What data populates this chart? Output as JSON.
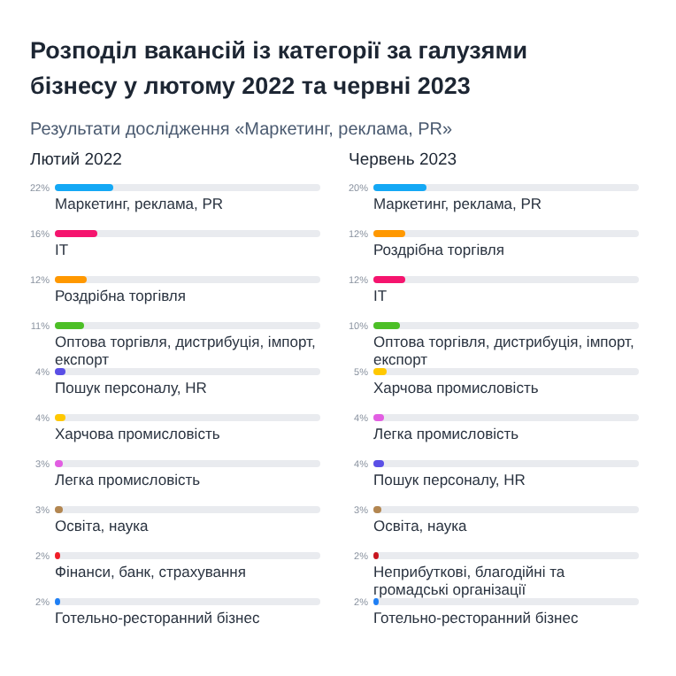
{
  "chart_data": [
    {
      "type": "bar",
      "orientation": "horizontal",
      "title": "Лютий 2022",
      "annotations": [
        "Розподіл вакансій із категорії за галузями бізнесу у лютому 2022 та червні 2023",
        "Результати дослідження «Маркетинг, реклама, PR»"
      ],
      "categories": [
        "Маркетинг, реклама, PR",
        "IT",
        "Роздрібна торгівля",
        "Оптова торгівля, дистрибуція, імпорт, експорт",
        "Пошук персоналу, HR",
        "Харчова промисловість",
        "Легка промисловість",
        "Освіта, наука",
        "Фінанси, банк, страхування",
        "Готельно-ресторанний бізнес"
      ],
      "values": [
        22,
        16,
        12,
        11,
        4,
        4,
        3,
        3,
        2,
        2
      ],
      "value_labels": [
        "22%",
        "16%",
        "12%",
        "11%",
        "4%",
        "4%",
        "3%",
        "3%",
        "2%",
        "2%"
      ],
      "colors": [
        "#14a8f5",
        "#f5146e",
        "#ff9800",
        "#4cbf26",
        "#5a4fe6",
        "#ffc800",
        "#e25ee2",
        "#b38650",
        "#f01e28",
        "#1e7ff5"
      ],
      "xlim": [
        0,
        100
      ]
    },
    {
      "type": "bar",
      "orientation": "horizontal",
      "title": "Червень 2023",
      "categories": [
        "Маркетинг, реклама, PR",
        "Роздрібна торгівля",
        "IT",
        "Оптова торгівля, дистрибуція, імпорт, експорт",
        "Харчова промисловість",
        "Легка промисловість",
        "Пошук персоналу, HR",
        "Освіта, наука",
        "Неприбуткові, благодійні та громадські організації",
        "Готельно-ресторанний бізнес"
      ],
      "values": [
        20,
        12,
        12,
        10,
        5,
        4,
        4,
        3,
        2,
        2
      ],
      "value_labels": [
        "20%",
        "12%",
        "12%",
        "10%",
        "5%",
        "4%",
        "4%",
        "3%",
        "2%",
        "2%"
      ],
      "colors": [
        "#14a8f5",
        "#ff9800",
        "#f5146e",
        "#4cbf26",
        "#ffc800",
        "#e25ee2",
        "#5a4fe6",
        "#b38650",
        "#c8141e",
        "#1e7ff5"
      ],
      "xlim": [
        0,
        100
      ]
    }
  ]
}
